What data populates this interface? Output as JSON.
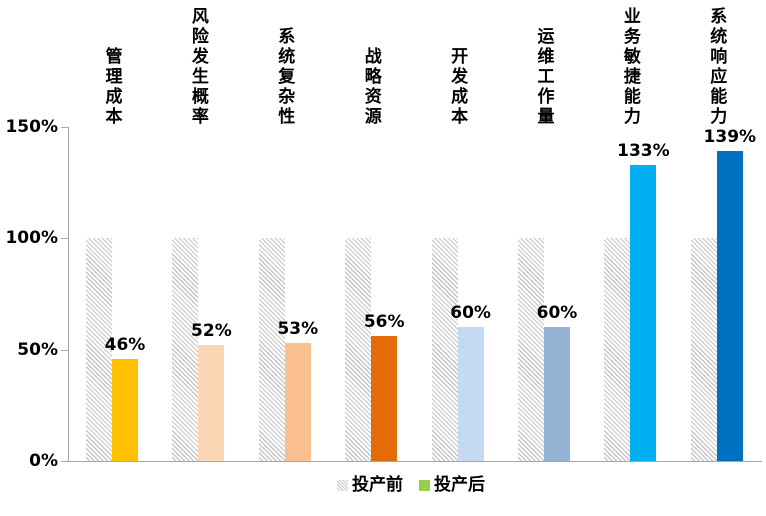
{
  "chart_data": {
    "type": "bar",
    "title": "",
    "categories": [
      "管理成本",
      "风险发生概率",
      "系统复杂性",
      "战略资源",
      "开发成本",
      "运维工作量",
      "业务敏捷能力",
      "系统响应能力"
    ],
    "series": [
      {
        "name": "投产前",
        "values": [
          100,
          100,
          100,
          100,
          100,
          100,
          100,
          100
        ],
        "style": "hatched",
        "hatch_color": "#c6c6c6"
      },
      {
        "name": "投产后",
        "values": [
          46,
          52,
          53,
          56,
          60,
          60,
          133,
          139
        ],
        "colors": [
          "#FFC000",
          "#FCD5B4",
          "#FAC090",
          "#E36C09",
          "#C5D9F1",
          "#95B3D7",
          "#00B0F0",
          "#0070C0"
        ]
      }
    ],
    "value_labels": [
      "46%",
      "52%",
      "53%",
      "56%",
      "60%",
      "60%",
      "133%",
      "139%"
    ],
    "y_ticks": [
      {
        "label": "150%",
        "value": 150
      },
      {
        "label": "100%",
        "value": 100
      },
      {
        "label": "50%",
        "value": 50
      },
      {
        "label": "0%",
        "value": 0
      }
    ],
    "ylim": [
      0,
      150
    ],
    "grid": false,
    "axis_color": "#a6a6a6",
    "legend_position": "bottom",
    "legend": [
      {
        "label": "投产前",
        "swatch": "hatched"
      },
      {
        "label": "投产后",
        "swatch": "solid",
        "swatch_color": "#92D050"
      }
    ]
  }
}
